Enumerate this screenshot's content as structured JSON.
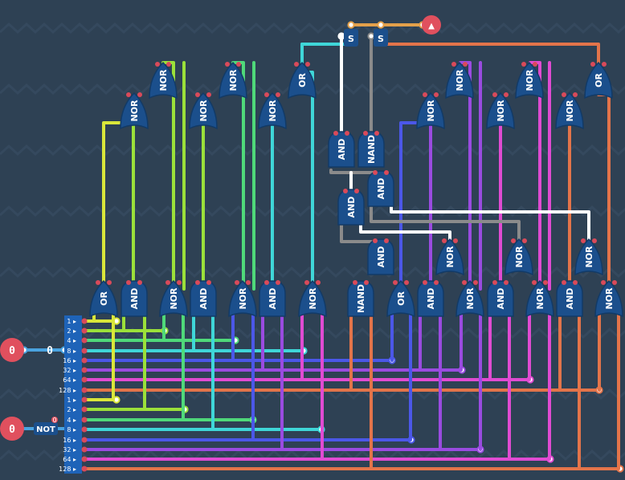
{
  "inputs": [
    {
      "value": "0",
      "display": "0"
    },
    {
      "value": "0"
    }
  ],
  "not_gate": {
    "label": "NOT",
    "badge": "0"
  },
  "output": {
    "symbol": "▲"
  },
  "pin_labels": [
    "1",
    "2",
    "4",
    "8",
    "16",
    "32",
    "64",
    "128"
  ],
  "latch_labels": [
    "S",
    "S"
  ],
  "gates": {
    "row_bottom": [
      "OR",
      "AND",
      "NOR",
      "AND",
      "NOR",
      "AND",
      "NOR",
      "NAND",
      "OR",
      "AND",
      "NOR",
      "AND",
      "NOR",
      "AND",
      "NOR"
    ],
    "tree_top": [
      "NOR",
      "NOR",
      "OR",
      "NOR",
      "NOR",
      "OR"
    ],
    "tree_mid": [
      "NOR",
      "NOR",
      "NOR",
      "NOR",
      "NOR",
      "NOR"
    ],
    "logic_center": [
      "AND",
      "NAND",
      "AND",
      "AND",
      "AND"
    ],
    "logic_lower": [
      "NOR",
      "NOR",
      "NOR"
    ]
  },
  "colors": {
    "background": "#2e4154",
    "gate_fill": "#1b4f8c",
    "gate_input_dot": "#d94a5a",
    "io_fill": "#e0505e",
    "pin_block": "#1e63b8",
    "bit1": "#d9e63a",
    "bit2": "#9be03a",
    "bit4": "#4fd97a",
    "bit8": "#3fd6d8",
    "bit16": "#4b57e8",
    "bit32": "#9a4be0",
    "bit64": "#e04bd2",
    "bit128": "#e3744a",
    "white_wire": "#ffffff",
    "grey_wire": "#8b8b8b",
    "orange_wire": "#e3a04a"
  }
}
